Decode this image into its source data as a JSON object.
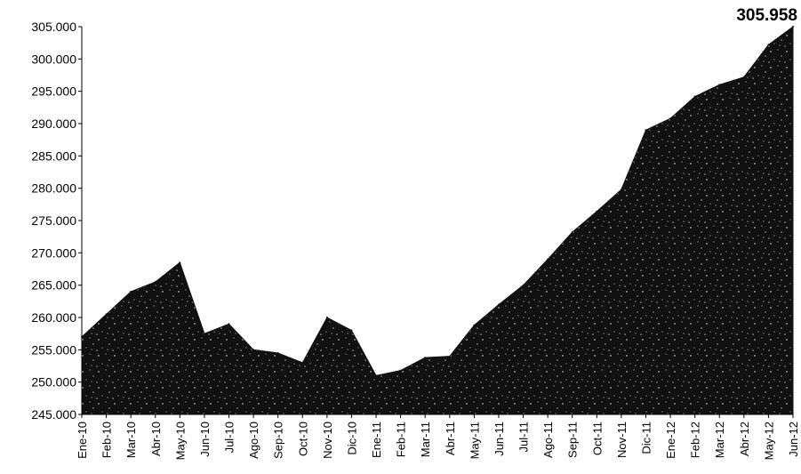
{
  "chart_data": {
    "type": "area",
    "title": "",
    "xlabel": "",
    "ylabel": "",
    "ylim": [
      245000,
      305000
    ],
    "yticks": [
      "305.000",
      "300.000",
      "295.000",
      "290.000",
      "285.000",
      "280.000",
      "275.000",
      "270.000",
      "265.000",
      "260.000",
      "255.000",
      "250.000",
      "245.000"
    ],
    "categories": [
      "Ene-10",
      "Feb-10",
      "Mar-10",
      "Abr-10",
      "May-10",
      "Jun-10",
      "Jul-10",
      "Ago-10",
      "Sep-10",
      "Oct-10",
      "Nov-10",
      "Dic-10",
      "Ene-11",
      "Feb-11",
      "Mar-11",
      "Abr-11",
      "May-11",
      "Jun-11",
      "Jul-11",
      "Ago-11",
      "Sep-11",
      "Oct-11",
      "Nov-11",
      "Dic-11",
      "Ene-12",
      "Feb-12",
      "Mar-12",
      "Abr-12",
      "May-12",
      "Jun-12"
    ],
    "series": [
      {
        "values": [
          257000,
          260500,
          264000,
          265500,
          268500,
          257500,
          259000,
          255000,
          254500,
          253000,
          260000,
          258000,
          251000,
          251800,
          253800,
          254000,
          258800,
          262000,
          265000,
          269000,
          273200,
          276400,
          279800,
          289000,
          290800,
          294200,
          296000,
          297200,
          302200,
          305000
        ]
      }
    ],
    "data_label": "305.958",
    "grid": false,
    "legend": "none",
    "colors": {
      "area": "#111111",
      "axis": "#000000",
      "background": "#ffffff"
    }
  }
}
